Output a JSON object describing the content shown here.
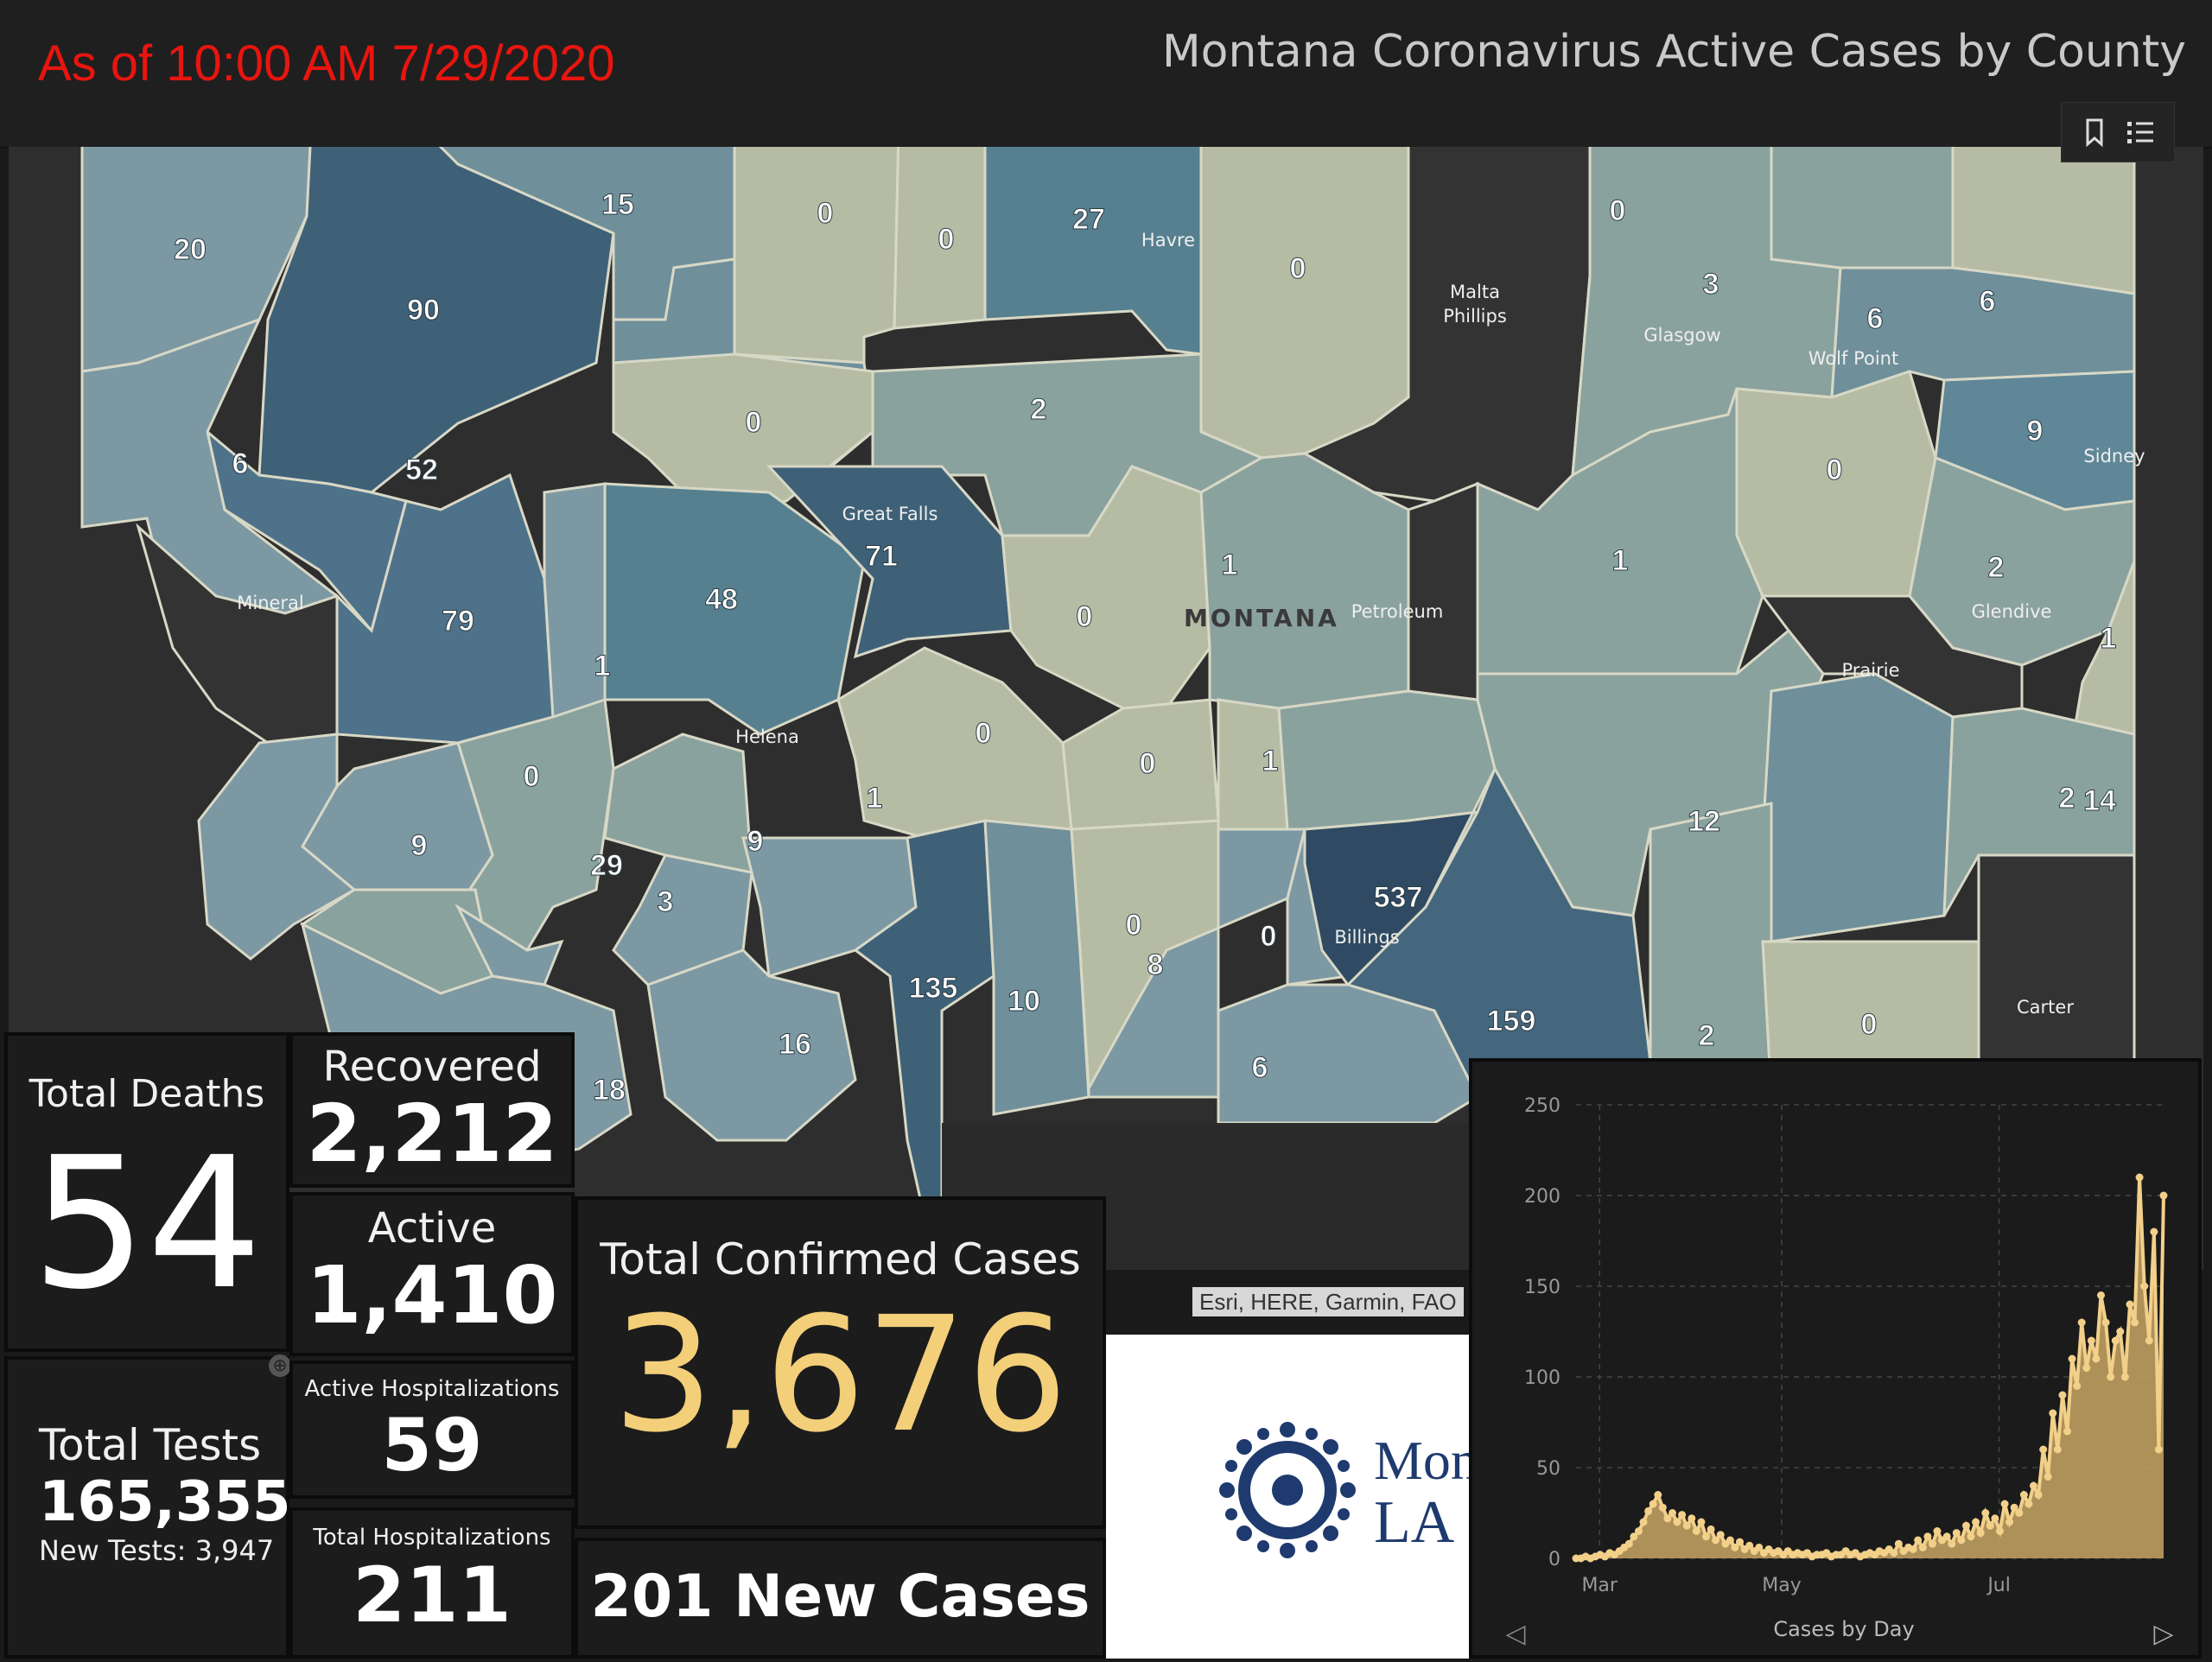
{
  "header": {
    "as_of": "As of 10:00 AM 7/29/2020",
    "title": "Montana Coronavirus Active Cases by County"
  },
  "map": {
    "state_label": "MONTANA",
    "county_values": [
      "20",
      "90",
      "15",
      "0",
      "0",
      "27",
      "0",
      "2",
      "0",
      "6",
      "3",
      "6",
      "52",
      "0",
      "2",
      "6",
      "9",
      "71",
      "1",
      "0",
      "1",
      "79",
      "48",
      "1",
      "2",
      "1",
      "0",
      "0",
      "0",
      "0",
      "1",
      "9",
      "1",
      "9",
      "0",
      "14",
      "29",
      "3",
      "12",
      "2",
      "537",
      "0",
      "8",
      "135",
      "10",
      "16",
      "159",
      "6",
      "18",
      "0"
    ],
    "place_labels": [
      "Havre",
      "Malta",
      "Phillips",
      "Glasgow",
      "Wolf Point",
      "Sidney",
      "Great Falls",
      "Mineral",
      "Petroleum",
      "Glendive",
      "Prairie",
      "Helena",
      "Billings",
      "Carter"
    ],
    "attribution": "Esri, HERE, Garmin, FAO"
  },
  "map_tools": {
    "bookmark_icon": "bookmark-icon",
    "legend_icon": "list-icon"
  },
  "stats": {
    "total_deaths_label": "Total Deaths",
    "total_deaths": "54",
    "recovered_label": "Recovered",
    "recovered": "2,212",
    "active_label": "Active",
    "active": "1,410",
    "total_tests_label": "Total Tests",
    "total_tests": "165,355",
    "new_tests": "New Tests: 3,947",
    "active_hosp_label": "Active Hospitalizations",
    "active_hosp": "59",
    "total_hosp_label": "Total Hospitalizations",
    "total_hosp": "211",
    "confirmed_label": "Total Confirmed Cases",
    "confirmed": "3,676",
    "new_cases": "201 New Cases"
  },
  "logo": {
    "line1": "Mon",
    "line2": "LA",
    "icon": "seal-icon"
  },
  "chart_data": {
    "type": "area",
    "title": "",
    "xlabel": "Cases by Day",
    "ylabel": "",
    "ylim": [
      0,
      250
    ],
    "yticks": [
      0,
      50,
      100,
      150,
      200,
      250
    ],
    "xticks": [
      "Mar",
      "May",
      "Jul"
    ],
    "color": "#f2d08a",
    "series": [
      {
        "values": [
          0,
          0,
          1,
          0,
          1,
          2,
          1,
          3,
          2,
          4,
          6,
          8,
          12,
          15,
          20,
          26,
          30,
          35,
          28,
          22,
          25,
          20,
          24,
          18,
          22,
          15,
          20,
          12,
          16,
          10,
          13,
          8,
          10,
          6,
          9,
          5,
          7,
          4,
          6,
          3,
          5,
          3,
          4,
          2,
          4,
          2,
          3,
          2,
          3,
          1,
          2,
          2,
          3,
          1,
          2,
          2,
          4,
          2,
          3,
          1,
          2,
          3,
          2,
          4,
          3,
          5,
          3,
          8,
          4,
          6,
          5,
          10,
          6,
          12,
          8,
          15,
          10,
          12,
          8,
          14,
          10,
          18,
          12,
          20,
          14,
          25,
          18,
          22,
          15,
          30,
          20,
          28,
          25,
          35,
          30,
          40,
          35,
          60,
          45,
          80,
          60,
          90,
          70,
          110,
          95,
          130,
          105,
          120,
          110,
          145,
          130,
          100,
          120,
          125,
          100,
          140,
          130,
          210,
          150,
          120,
          180,
          60,
          200
        ]
      }
    ],
    "nav_prev": "◁",
    "nav_next": "▷"
  }
}
